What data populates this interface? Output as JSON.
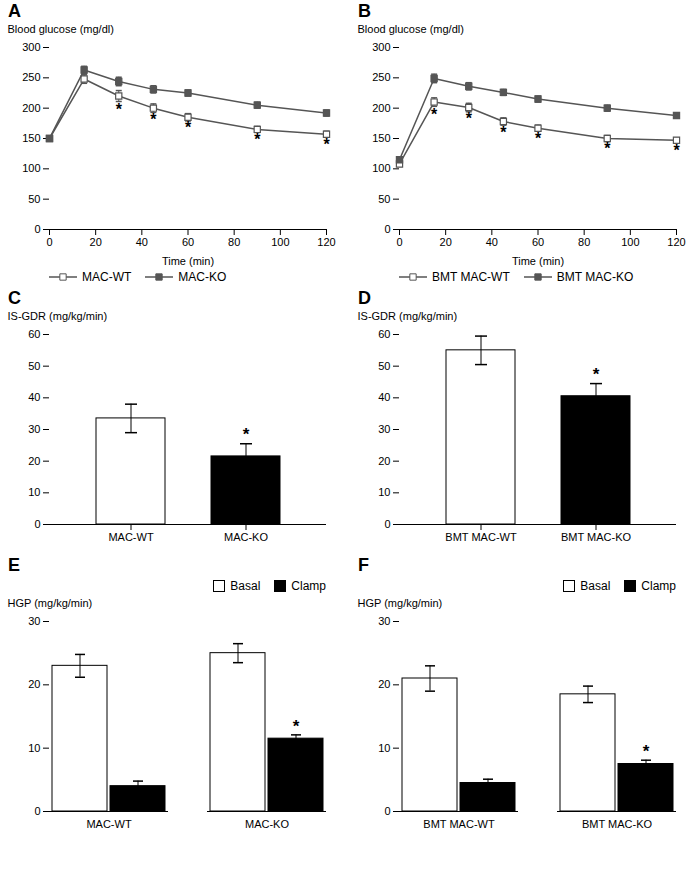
{
  "chart_data": [
    {
      "type": "line",
      "title": "A",
      "x": [
        0,
        15,
        30,
        45,
        60,
        90,
        120
      ],
      "series": [
        {
          "name": "MAC-WT",
          "color": "#555555",
          "marker": "square_open",
          "values": [
            150,
            248,
            220,
            200,
            185,
            165,
            157
          ],
          "errors": [
            3,
            7,
            9,
            7,
            6,
            5,
            5
          ]
        },
        {
          "name": "MAC-KO",
          "color": "#555555",
          "marker": "square",
          "values": [
            150,
            263,
            244,
            231,
            225,
            205,
            192
          ],
          "errors": [
            3,
            6,
            7,
            6,
            5,
            5,
            5
          ]
        }
      ],
      "xlabel": "Time (min)",
      "ylabel": "Blood glucose (mg/dl)",
      "xlim": [
        0,
        120
      ],
      "xticks": [
        0,
        20,
        40,
        60,
        80,
        100,
        120
      ],
      "ylim": [
        0,
        300
      ],
      "yticks": [
        0,
        50,
        100,
        150,
        200,
        250,
        300
      ],
      "legend": "lower left",
      "grid": false,
      "annotations": [
        {
          "text": "*",
          "x": 30,
          "y": 207
        },
        {
          "text": "*",
          "x": 45,
          "y": 191
        },
        {
          "text": "*",
          "x": 60,
          "y": 177
        },
        {
          "text": "*",
          "x": 90,
          "y": 158
        },
        {
          "text": "*",
          "x": 120,
          "y": 149
        }
      ]
    },
    {
      "type": "line",
      "title": "B",
      "x": [
        0,
        15,
        30,
        45,
        60,
        90,
        120
      ],
      "series": [
        {
          "name": "BMT MAC-WT",
          "color": "#555555",
          "marker": "square_open",
          "values": [
            108,
            210,
            201,
            178,
            167,
            150,
            147
          ],
          "errors": [
            4,
            7,
            7,
            6,
            5,
            5,
            4
          ]
        },
        {
          "name": "BMT MAC-KO",
          "color": "#555555",
          "marker": "square",
          "values": [
            115,
            249,
            236,
            226,
            215,
            200,
            188
          ],
          "errors": [
            4,
            7,
            6,
            5,
            5,
            5,
            4
          ]
        }
      ],
      "xlabel": "Time (min)",
      "ylabel": "Blood glucose (mg/dl)",
      "xlim": [
        0,
        120
      ],
      "xticks": [
        0,
        20,
        40,
        60,
        80,
        100,
        120
      ],
      "ylim": [
        0,
        300
      ],
      "yticks": [
        0,
        50,
        100,
        150,
        200,
        250,
        300
      ],
      "legend": "lower left",
      "grid": false,
      "annotations": [
        {
          "text": "*",
          "x": 15,
          "y": 200
        },
        {
          "text": "*",
          "x": 30,
          "y": 192
        },
        {
          "text": "*",
          "x": 45,
          "y": 170
        },
        {
          "text": "*",
          "x": 60,
          "y": 160
        },
        {
          "text": "*",
          "x": 90,
          "y": 143
        },
        {
          "text": "*",
          "x": 120,
          "y": 140
        }
      ]
    },
    {
      "type": "bar",
      "title": "C",
      "categories": [
        "MAC-WT",
        "MAC-KO"
      ],
      "values": [
        33.5,
        21.5
      ],
      "errors": [
        4.5,
        4.0
      ],
      "colors": [
        "white",
        "black"
      ],
      "ylabel": "IS-GDR (mg/kg/min)",
      "ylim": [
        0,
        60
      ],
      "yticks": [
        0,
        10,
        20,
        30,
        40,
        50,
        60
      ],
      "grid": false,
      "annotations": [
        {
          "text": "*",
          "x": "MAC-KO",
          "y": 26.7
        }
      ]
    },
    {
      "type": "bar",
      "title": "D",
      "categories": [
        "BMT MAC-WT",
        "BMT MAC-KO"
      ],
      "values": [
        55,
        40.5
      ],
      "errors": [
        4.5,
        4.0
      ],
      "colors": [
        "white",
        "black"
      ],
      "ylabel": "IS-GDR (mg/kg/min)",
      "ylim": [
        0,
        60
      ],
      "yticks": [
        0,
        10,
        20,
        30,
        40,
        50,
        60
      ],
      "grid": false,
      "annotations": [
        {
          "text": "*",
          "x": "BMT MAC-KO",
          "y": 45.7
        }
      ]
    },
    {
      "type": "bar",
      "title": "E",
      "categories": [
        "MAC-WT",
        "MAC-KO"
      ],
      "series": [
        {
          "name": "Basal",
          "color": "white",
          "values": [
            23,
            25
          ],
          "errors": [
            1.8,
            1.5
          ]
        },
        {
          "name": "Clamp",
          "color": "black",
          "values": [
            4.0,
            11.5
          ],
          "errors": [
            0.8,
            0.6
          ]
        }
      ],
      "ylabel": "HGP (mg/kg/min)",
      "ylim": [
        0,
        30
      ],
      "yticks": [
        0,
        10,
        20,
        30
      ],
      "legend": "upper right",
      "grid": false,
      "annotations": [
        {
          "text": "*",
          "x": "MAC-KO",
          "series": "Clamp",
          "y": 12.6
        }
      ]
    },
    {
      "type": "bar",
      "title": "F",
      "categories": [
        "BMT MAC-WT",
        "BMT MAC-KO"
      ],
      "series": [
        {
          "name": "Basal",
          "color": "white",
          "values": [
            21,
            18.5
          ],
          "errors": [
            2.0,
            1.3
          ]
        },
        {
          "name": "Clamp",
          "color": "black",
          "values": [
            4.5,
            7.5
          ],
          "errors": [
            0.6,
            0.6
          ]
        }
      ],
      "ylabel": "HGP (mg/kg/min)",
      "ylim": [
        0,
        30
      ],
      "yticks": [
        0,
        10,
        20,
        30
      ],
      "legend": "upper right",
      "grid": false,
      "annotations": [
        {
          "text": "*",
          "x": "BMT MAC-KO",
          "series": "Clamp",
          "y": 8.6
        }
      ]
    }
  ]
}
